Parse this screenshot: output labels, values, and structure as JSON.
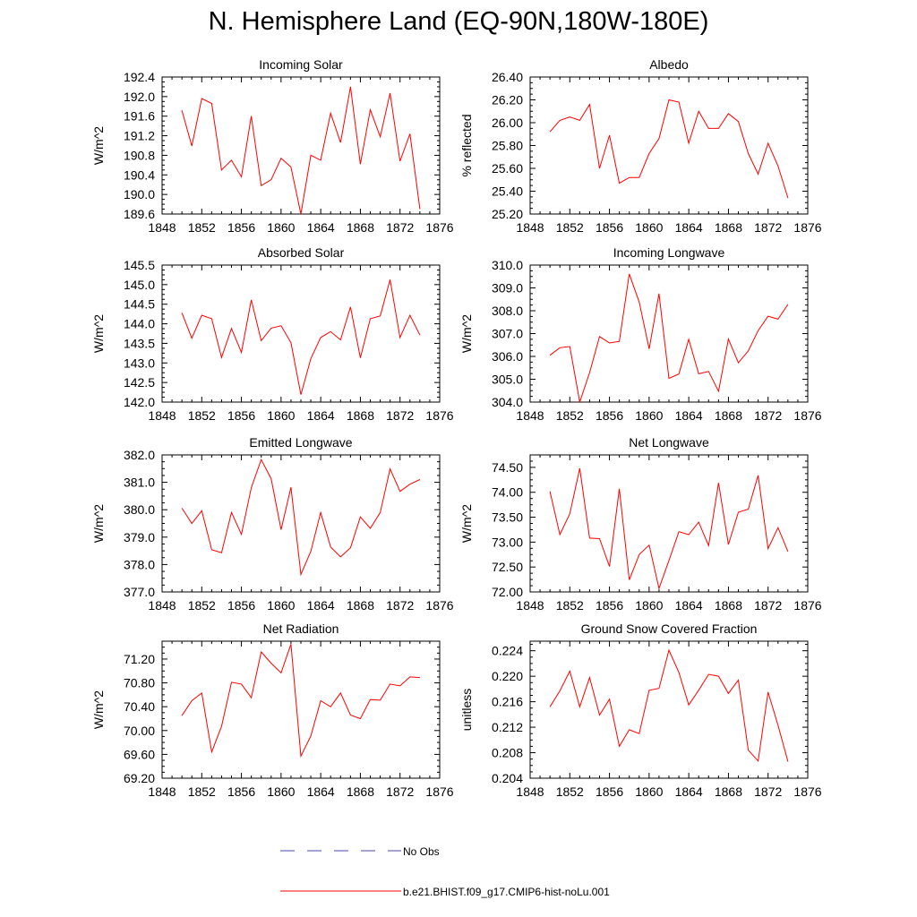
{
  "title": "N. Hemisphere Land (EQ-90N,180W-180E)",
  "x_tick_labels": [
    "1848",
    "1852",
    "1856",
    "1860",
    "1864",
    "1868",
    "1872",
    "1876"
  ],
  "legend": {
    "no_obs_label": "No Obs",
    "model_label": "b.e21.BHIST.f09_g17.CMIP6-hist-noLu.001",
    "no_obs_color": "#4a4aa8",
    "model_color": "#ff0000"
  },
  "chart_data": [
    {
      "type": "line",
      "title": "Incoming Solar",
      "ylabel": "W/m^2",
      "xlim": [
        1848,
        1876
      ],
      "ylim": [
        189.6,
        192.4
      ],
      "yticks": [
        "189.6",
        "190.0",
        "190.4",
        "190.8",
        "191.2",
        "191.6",
        "192.0",
        "192.4"
      ],
      "x": [
        1850,
        1851,
        1852,
        1853,
        1854,
        1855,
        1856,
        1857,
        1858,
        1859,
        1860,
        1861,
        1862,
        1863,
        1864,
        1865,
        1866,
        1867,
        1868,
        1869,
        1870,
        1871,
        1872,
        1873,
        1874
      ],
      "series": [
        {
          "name": "b.e21.BHIST.f09_g17.CMIP6-hist-noLu.001",
          "values": [
            191.72,
            190.99,
            191.96,
            191.86,
            190.5,
            190.7,
            190.36,
            191.6,
            190.18,
            190.3,
            190.74,
            190.56,
            189.6,
            190.8,
            190.7,
            191.66,
            191.06,
            192.2,
            190.62,
            191.73,
            191.18,
            192.07,
            190.68,
            191.24,
            189.7
          ]
        }
      ]
    },
    {
      "type": "line",
      "title": "Albedo",
      "ylabel": "% reflected",
      "xlim": [
        1848,
        1876
      ],
      "ylim": [
        25.2,
        26.4
      ],
      "yticks": [
        "25.20",
        "25.40",
        "25.60",
        "25.80",
        "26.00",
        "26.20",
        "26.40"
      ],
      "x": [
        1850,
        1851,
        1852,
        1853,
        1854,
        1855,
        1856,
        1857,
        1858,
        1859,
        1860,
        1861,
        1862,
        1863,
        1864,
        1865,
        1866,
        1867,
        1868,
        1869,
        1870,
        1871,
        1872,
        1873,
        1874
      ],
      "series": [
        {
          "name": "b.e21.BHIST.f09_g17.CMIP6-hist-noLu.001",
          "values": [
            25.92,
            26.02,
            26.05,
            26.02,
            26.16,
            25.6,
            25.89,
            25.47,
            25.52,
            25.52,
            25.73,
            25.86,
            26.2,
            26.18,
            25.82,
            26.1,
            25.95,
            25.95,
            26.08,
            26.01,
            25.73,
            25.55,
            25.82,
            25.62,
            25.34
          ]
        }
      ]
    },
    {
      "type": "line",
      "title": "Absorbed Solar",
      "ylabel": "W/m^2",
      "xlim": [
        1848,
        1876
      ],
      "ylim": [
        142.0,
        145.5
      ],
      "yticks": [
        "142.0",
        "142.5",
        "143.0",
        "143.5",
        "144.0",
        "144.5",
        "145.0",
        "145.5"
      ],
      "x": [
        1850,
        1851,
        1852,
        1853,
        1854,
        1855,
        1856,
        1857,
        1858,
        1859,
        1860,
        1861,
        1862,
        1863,
        1864,
        1865,
        1866,
        1867,
        1868,
        1869,
        1870,
        1871,
        1872,
        1873,
        1874
      ],
      "series": [
        {
          "name": "b.e21.BHIST.f09_g17.CMIP6-hist-noLu.001",
          "values": [
            144.28,
            143.63,
            144.22,
            144.13,
            143.14,
            143.88,
            143.27,
            144.61,
            143.57,
            143.89,
            143.95,
            143.52,
            142.19,
            143.11,
            143.65,
            143.8,
            143.59,
            144.43,
            143.13,
            144.13,
            144.2,
            145.13,
            143.65,
            144.22,
            143.71
          ]
        }
      ]
    },
    {
      "type": "line",
      "title": "Incoming Longwave",
      "ylabel": "W/m^2",
      "xlim": [
        1848,
        1876
      ],
      "ylim": [
        304.0,
        310.0
      ],
      "yticks": [
        "304.0",
        "305.0",
        "306.0",
        "307.0",
        "308.0",
        "309.0",
        "310.0"
      ],
      "x": [
        1850,
        1851,
        1852,
        1853,
        1854,
        1855,
        1856,
        1857,
        1858,
        1859,
        1860,
        1861,
        1862,
        1863,
        1864,
        1865,
        1866,
        1867,
        1868,
        1869,
        1870,
        1871,
        1872,
        1873,
        1874
      ],
      "series": [
        {
          "name": "b.e21.BHIST.f09_g17.CMIP6-hist-noLu.001",
          "values": [
            306.05,
            306.38,
            306.43,
            304.0,
            305.29,
            306.87,
            306.59,
            306.66,
            309.61,
            308.38,
            306.33,
            308.75,
            305.04,
            305.23,
            306.75,
            305.24,
            305.34,
            304.47,
            306.76,
            305.72,
            306.24,
            307.13,
            307.76,
            307.63,
            308.28
          ]
        }
      ]
    },
    {
      "type": "line",
      "title": "Emitted Longwave",
      "ylabel": "W/m^2",
      "xlim": [
        1848,
        1876
      ],
      "ylim": [
        377.0,
        382.0
      ],
      "yticks": [
        "377.0",
        "378.0",
        "379.0",
        "380.0",
        "381.0",
        "382.0"
      ],
      "x": [
        1850,
        1851,
        1852,
        1853,
        1854,
        1855,
        1856,
        1857,
        1858,
        1859,
        1860,
        1861,
        1862,
        1863,
        1864,
        1865,
        1866,
        1867,
        1868,
        1869,
        1870,
        1871,
        1872,
        1873,
        1874
      ],
      "series": [
        {
          "name": "b.e21.BHIST.f09_g17.CMIP6-hist-noLu.001",
          "values": [
            380.06,
            379.5,
            379.96,
            378.54,
            378.43,
            379.9,
            379.1,
            380.8,
            381.83,
            381.13,
            379.27,
            380.82,
            377.64,
            378.48,
            379.9,
            378.64,
            378.28,
            378.61,
            379.74,
            379.32,
            379.9,
            381.49,
            380.67,
            380.93,
            381.1
          ]
        }
      ]
    },
    {
      "type": "line",
      "title": "Net Longwave",
      "ylabel": "W/m^2",
      "xlim": [
        1848,
        1876
      ],
      "ylim": [
        72.0,
        74.75
      ],
      "yticks": [
        "72.00",
        "72.50",
        "73.00",
        "73.50",
        "74.00",
        "74.50"
      ],
      "x": [
        1850,
        1851,
        1852,
        1853,
        1854,
        1855,
        1856,
        1857,
        1858,
        1859,
        1860,
        1861,
        1862,
        1863,
        1864,
        1865,
        1866,
        1867,
        1868,
        1869,
        1870,
        1871,
        1872,
        1873,
        1874
      ],
      "series": [
        {
          "name": "b.e21.BHIST.f09_g17.CMIP6-hist-noLu.001",
          "values": [
            74.02,
            73.15,
            73.57,
            74.48,
            73.08,
            73.07,
            72.51,
            74.07,
            72.24,
            72.75,
            72.94,
            72.07,
            72.63,
            73.21,
            73.15,
            73.4,
            72.93,
            74.19,
            72.95,
            73.6,
            73.66,
            74.34,
            72.87,
            73.29,
            72.81
          ]
        }
      ]
    },
    {
      "type": "line",
      "title": "Net Radiation",
      "ylabel": "W/m^2",
      "xlim": [
        1848,
        1876
      ],
      "ylim": [
        69.2,
        71.5
      ],
      "yticks": [
        "69.20",
        "69.60",
        "70.00",
        "70.40",
        "70.80",
        "71.20"
      ],
      "x": [
        1850,
        1851,
        1852,
        1853,
        1854,
        1855,
        1856,
        1857,
        1858,
        1859,
        1860,
        1861,
        1862,
        1863,
        1864,
        1865,
        1866,
        1867,
        1868,
        1869,
        1870,
        1871,
        1872,
        1873,
        1874
      ],
      "series": [
        {
          "name": "b.e21.BHIST.f09_g17.CMIP6-hist-noLu.001",
          "values": [
            70.25,
            70.5,
            70.63,
            69.64,
            70.07,
            70.81,
            70.78,
            70.55,
            71.32,
            71.13,
            70.97,
            71.45,
            69.57,
            69.91,
            70.5,
            70.4,
            70.63,
            70.26,
            70.2,
            70.52,
            70.51,
            70.78,
            70.75,
            70.9,
            70.89
          ]
        }
      ]
    },
    {
      "type": "line",
      "title": "Ground Snow Covered Fraction",
      "ylabel": "unitless",
      "xlim": [
        1848,
        1876
      ],
      "ylim": [
        0.204,
        0.2255
      ],
      "yticks": [
        "0.204",
        "0.208",
        "0.212",
        "0.216",
        "0.220",
        "0.224"
      ],
      "x": [
        1850,
        1851,
        1852,
        1853,
        1854,
        1855,
        1856,
        1857,
        1858,
        1859,
        1860,
        1861,
        1862,
        1863,
        1864,
        1865,
        1866,
        1867,
        1868,
        1869,
        1870,
        1871,
        1872,
        1873,
        1874
      ],
      "series": [
        {
          "name": "b.e21.BHIST.f09_g17.CMIP6-hist-noLu.001",
          "values": [
            0.2152,
            0.2177,
            0.2208,
            0.2152,
            0.2198,
            0.2139,
            0.2164,
            0.209,
            0.2116,
            0.211,
            0.2178,
            0.2181,
            0.2241,
            0.2206,
            0.2155,
            0.2178,
            0.2203,
            0.22,
            0.2173,
            0.2194,
            0.2084,
            0.2067,
            0.2175,
            0.2123,
            0.2066
          ]
        }
      ]
    }
  ]
}
